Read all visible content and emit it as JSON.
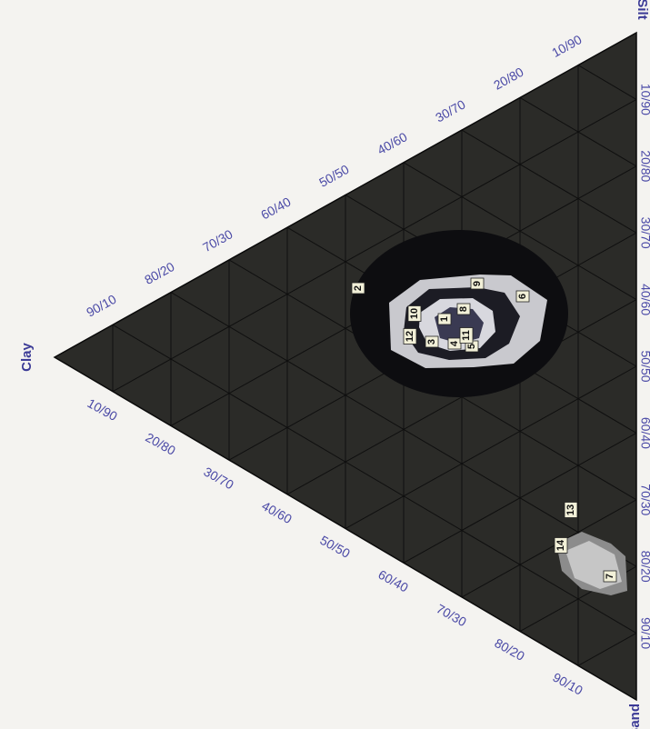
{
  "vertices": {
    "clay": "Clay",
    "silt": "Silt",
    "sand": "Sand"
  },
  "ticks": {
    "top_edge": [
      "90/10",
      "80/20",
      "70/30",
      "60/40",
      "50/50",
      "40/60",
      "30/70",
      "20/80",
      "10/90"
    ],
    "right_edge": [
      "10/90",
      "20/80",
      "30/70",
      "40/60",
      "50/50",
      "60/40",
      "70/30",
      "80/20",
      "90/10"
    ],
    "bottom_edge": [
      "10/90",
      "20/80",
      "30/70",
      "40/60",
      "50/50",
      "60/40",
      "70/30",
      "80/20",
      "90/10"
    ]
  },
  "points": [
    "1",
    "2",
    "3",
    "4",
    "5",
    "6",
    "7",
    "8",
    "9",
    "10",
    "11",
    "12",
    "13",
    "14"
  ],
  "colors": {
    "fill": "#2b2b28",
    "grid": "#0f0f0f",
    "contour_dark": "#0d0d10",
    "contour_light": "#c9c9ce",
    "contour_core": "#3a3a52",
    "label_ink": "#3b3a96"
  }
}
